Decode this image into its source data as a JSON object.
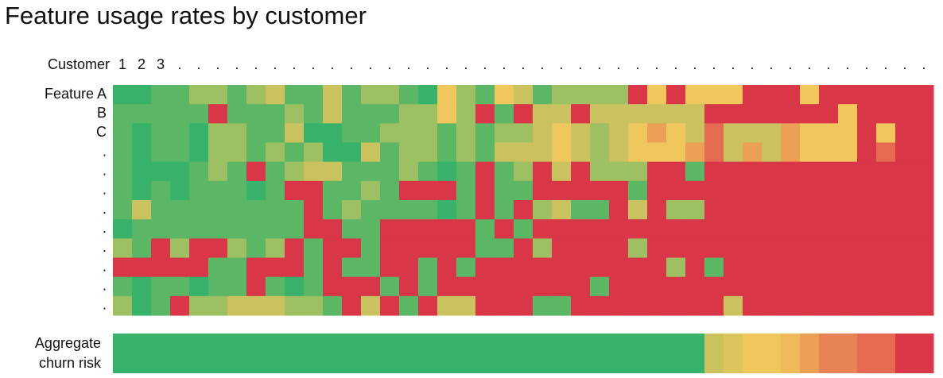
{
  "chart_data": {
    "type": "heatmap",
    "title": "Feature usage rates by customer",
    "x_label": "Customer",
    "categories": [
      "1",
      "2",
      "3",
      ".",
      ".",
      ".",
      ".",
      ".",
      ".",
      ".",
      ".",
      ".",
      ".",
      ".",
      ".",
      ".",
      ".",
      ".",
      ".",
      ".",
      ".",
      ".",
      ".",
      ".",
      ".",
      ".",
      ".",
      ".",
      ".",
      ".",
      ".",
      ".",
      ".",
      ".",
      ".",
      ".",
      ".",
      ".",
      ".",
      ".",
      ".",
      ".",
      "."
    ],
    "rows": [
      "Feature A",
      "B",
      "C",
      ".",
      ".",
      ".",
      ".",
      ".",
      ".",
      ".",
      ".",
      "."
    ],
    "values": [
      [
        95,
        95,
        85,
        85,
        75,
        75,
        85,
        75,
        65,
        85,
        85,
        65,
        85,
        75,
        75,
        85,
        95,
        55,
        75,
        85,
        55,
        65,
        85,
        75,
        75,
        75,
        75,
        0,
        55,
        0,
        55,
        55,
        55,
        0,
        0,
        0,
        55,
        0,
        0,
        0,
        0,
        0,
        0
      ],
      [
        85,
        85,
        85,
        85,
        85,
        0,
        85,
        85,
        85,
        75,
        85,
        65,
        85,
        85,
        85,
        75,
        75,
        55,
        75,
        0,
        85,
        0,
        65,
        65,
        0,
        65,
        65,
        65,
        65,
        65,
        65,
        0,
        0,
        0,
        0,
        0,
        0,
        0,
        55,
        0,
        0,
        0,
        0
      ],
      [
        85,
        95,
        85,
        85,
        95,
        75,
        75,
        85,
        85,
        65,
        95,
        95,
        85,
        85,
        75,
        75,
        75,
        85,
        75,
        85,
        75,
        75,
        65,
        55,
        65,
        75,
        65,
        55,
        45,
        55,
        65,
        30,
        65,
        65,
        65,
        45,
        55,
        55,
        55,
        0,
        55,
        0,
        0
      ],
      [
        85,
        95,
        85,
        85,
        95,
        75,
        75,
        85,
        75,
        85,
        75,
        95,
        95,
        65,
        85,
        75,
        75,
        85,
        75,
        85,
        65,
        65,
        65,
        55,
        65,
        75,
        65,
        55,
        55,
        55,
        45,
        30,
        65,
        45,
        65,
        45,
        55,
        55,
        55,
        0,
        30,
        0,
        0
      ],
      [
        85,
        95,
        95,
        95,
        85,
        75,
        85,
        0,
        85,
        75,
        65,
        65,
        85,
        85,
        85,
        75,
        85,
        95,
        85,
        0,
        85,
        75,
        0,
        65,
        0,
        75,
        75,
        75,
        0,
        0,
        85,
        0,
        0,
        0,
        0,
        0,
        0,
        0,
        0,
        0,
        0,
        0,
        0
      ],
      [
        85,
        95,
        85,
        95,
        85,
        85,
        85,
        95,
        85,
        0,
        0,
        85,
        85,
        75,
        85,
        0,
        0,
        0,
        85,
        0,
        85,
        85,
        0,
        0,
        0,
        0,
        0,
        85,
        0,
        0,
        0,
        0,
        0,
        0,
        0,
        0,
        0,
        0,
        0,
        0,
        0,
        0,
        0
      ],
      [
        85,
        65,
        85,
        85,
        85,
        85,
        85,
        85,
        85,
        85,
        0,
        85,
        75,
        85,
        85,
        85,
        85,
        95,
        85,
        0,
        85,
        0,
        75,
        65,
        85,
        85,
        0,
        65,
        0,
        75,
        75,
        0,
        0,
        0,
        0,
        0,
        0,
        0,
        0,
        0,
        0,
        0,
        0
      ],
      [
        95,
        85,
        85,
        85,
        85,
        85,
        85,
        85,
        85,
        85,
        0,
        0,
        85,
        85,
        0,
        0,
        0,
        0,
        0,
        85,
        0,
        85,
        0,
        0,
        0,
        0,
        0,
        0,
        0,
        0,
        0,
        0,
        0,
        0,
        0,
        0,
        0,
        0,
        0,
        0,
        0,
        0,
        0
      ],
      [
        75,
        85,
        0,
        75,
        0,
        0,
        75,
        85,
        75,
        0,
        85,
        0,
        0,
        85,
        0,
        0,
        0,
        0,
        0,
        85,
        85,
        0,
        75,
        0,
        0,
        0,
        0,
        75,
        0,
        0,
        0,
        0,
        0,
        0,
        0,
        0,
        0,
        0,
        0,
        0,
        0,
        0,
        0
      ],
      [
        0,
        0,
        0,
        0,
        0,
        85,
        85,
        0,
        0,
        0,
        85,
        0,
        85,
        85,
        0,
        0,
        85,
        0,
        85,
        0,
        0,
        0,
        0,
        0,
        0,
        0,
        0,
        0,
        0,
        75,
        0,
        85,
        0,
        0,
        0,
        0,
        0,
        0,
        0,
        0,
        0,
        0,
        0
      ],
      [
        85,
        95,
        85,
        85,
        95,
        85,
        85,
        0,
        85,
        95,
        85,
        0,
        0,
        0,
        85,
        0,
        85,
        0,
        0,
        0,
        0,
        0,
        0,
        0,
        0,
        85,
        0,
        0,
        0,
        0,
        0,
        0,
        0,
        0,
        0,
        0,
        0,
        0,
        0,
        0,
        0,
        0,
        0
      ],
      [
        75,
        95,
        85,
        0,
        75,
        75,
        65,
        65,
        65,
        75,
        75,
        85,
        0,
        65,
        0,
        85,
        0,
        65,
        65,
        0,
        0,
        0,
        85,
        85,
        0,
        0,
        0,
        0,
        0,
        0,
        0,
        0,
        65,
        0,
        0,
        0,
        0,
        0,
        0,
        0,
        0,
        0,
        0
      ]
    ],
    "colorscale": [
      [
        0,
        "#d93648"
      ],
      [
        30,
        "#e46a52"
      ],
      [
        45,
        "#eca056"
      ],
      [
        55,
        "#f0c75c"
      ],
      [
        65,
        "#c9c25f"
      ],
      [
        75,
        "#9dc062"
      ],
      [
        85,
        "#5bb766"
      ],
      [
        95,
        "#37b26a"
      ]
    ],
    "aggregate": {
      "label": [
        "Aggregate",
        "churn risk"
      ],
      "values": [
        5,
        5,
        5,
        5,
        5,
        5,
        5,
        5,
        5,
        5,
        5,
        5,
        5,
        5,
        5,
        5,
        5,
        5,
        5,
        5,
        5,
        5,
        5,
        5,
        5,
        5,
        5,
        5,
        5,
        5,
        5,
        35,
        40,
        45,
        45,
        48,
        55,
        62,
        62,
        68,
        68,
        100,
        100
      ],
      "colorscale": [
        [
          5,
          "#37b26a"
        ],
        [
          15,
          "#5bb766"
        ],
        [
          25,
          "#9dc062"
        ],
        [
          35,
          "#c9c25f"
        ],
        [
          45,
          "#f0c75c"
        ],
        [
          55,
          "#eca056"
        ],
        [
          68,
          "#e46a52"
        ],
        [
          100,
          "#d93648"
        ]
      ]
    }
  }
}
